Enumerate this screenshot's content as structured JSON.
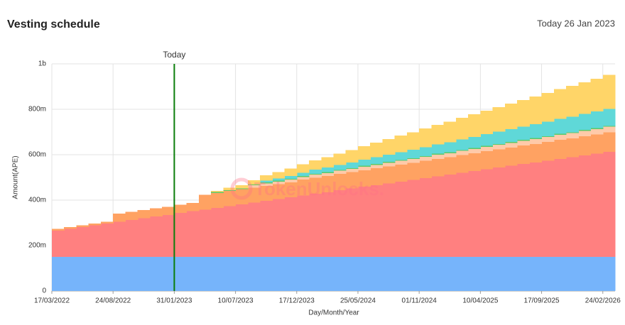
{
  "header": {
    "title": "Vesting schedule",
    "date": "Today 26 Jan 2023"
  },
  "chart_data": {
    "type": "stacked_step_area",
    "watermark": "TokenUnlocks.",
    "xlabel": "Day/Month/Year",
    "ylabel": "Amount(APE)",
    "today_marker": {
      "label": "Today",
      "category": "31/01/2023",
      "color": "#0a7d0a"
    },
    "categories": [
      "17/03/2022",
      null,
      null,
      null,
      null,
      "24/08/2022",
      null,
      null,
      null,
      null,
      "31/01/2023",
      null,
      null,
      null,
      null,
      "10/07/2023",
      null,
      null,
      null,
      null,
      "17/12/2023",
      null,
      null,
      null,
      null,
      "25/05/2024",
      null,
      null,
      null,
      null,
      "01/11/2024",
      null,
      null,
      null,
      null,
      "10/04/2025",
      null,
      null,
      null,
      null,
      "17/09/2025",
      null,
      null,
      null,
      null,
      "24/02/2026"
    ],
    "ylim": [
      0,
      1000000000
    ],
    "yticks": [
      0,
      {
        "value": 200000000,
        "label": "200m"
      },
      {
        "value": 400000000,
        "label": "400m"
      },
      {
        "value": 600000000,
        "label": "600m"
      },
      {
        "value": 800000000,
        "label": "800m"
      },
      {
        "value": 1000000000,
        "label": "1b"
      }
    ],
    "grid": true,
    "series": [
      {
        "color": "#76b4fb",
        "values": [
          150000000,
          150000000,
          150000000,
          150000000,
          150000000,
          150000000,
          150000000,
          150000000,
          150000000,
          150000000,
          150000000,
          150000000,
          150000000,
          150000000,
          150000000,
          150000000,
          150000000,
          150000000,
          150000000,
          150000000,
          150000000,
          150000000,
          150000000,
          150000000,
          150000000,
          150000000,
          150000000,
          150000000,
          150000000,
          150000000,
          150000000,
          150000000,
          150000000,
          150000000,
          150000000,
          150000000,
          150000000,
          150000000,
          150000000,
          150000000,
          150000000,
          150000000,
          150000000,
          150000000,
          150000000,
          150000000
        ]
      },
      {
        "color": "#ff8080",
        "values": [
          116000000,
          124000000,
          131000000,
          139000000,
          147000000,
          155000000,
          162000000,
          170000000,
          178000000,
          185000000,
          193000000,
          201000000,
          208000000,
          216000000,
          224000000,
          232000000,
          239000000,
          247000000,
          255000000,
          262000000,
          270000000,
          278000000,
          285000000,
          293000000,
          301000000,
          309000000,
          316000000,
          324000000,
          332000000,
          339000000,
          347000000,
          355000000,
          362000000,
          370000000,
          378000000,
          386000000,
          393000000,
          401000000,
          409000000,
          416000000,
          424000000,
          432000000,
          439000000,
          447000000,
          455000000,
          463000000
        ]
      },
      {
        "color": "#ffa262",
        "values": [
          8000000,
          8000000,
          8000000,
          8000000,
          8000000,
          36000000,
          36000000,
          36000000,
          36000000,
          36000000,
          36000000,
          36000000,
          66000000,
          66000000,
          66000000,
          66000000,
          66000000,
          66000000,
          66000000,
          66000000,
          70000000,
          71000000,
          71000000,
          72000000,
          72000000,
          73000000,
          74000000,
          74000000,
          75000000,
          75000000,
          76000000,
          77000000,
          77000000,
          78000000,
          78000000,
          79000000,
          80000000,
          80000000,
          81000000,
          81000000,
          82000000,
          83000000,
          83000000,
          84000000,
          84000000,
          85000000
        ]
      },
      {
        "color": "#ffcaa9",
        "values": [
          0,
          0,
          0,
          0,
          0,
          0,
          0,
          0,
          0,
          0,
          0,
          0,
          0,
          0,
          0,
          0,
          10000000,
          11000000,
          11000000,
          12000000,
          12000000,
          13000000,
          13000000,
          14000000,
          14000000,
          15000000,
          15000000,
          16000000,
          16000000,
          17000000,
          17000000,
          18000000,
          18000000,
          19000000,
          19000000,
          20000000,
          20000000,
          21000000,
          21000000,
          22000000,
          22000000,
          23000000,
          23000000,
          24000000,
          24000000,
          25000000
        ]
      },
      {
        "color": "#5cc96a",
        "values": [
          0,
          0,
          0,
          0,
          0,
          0,
          0,
          0,
          0,
          0,
          0,
          0,
          0,
          4000000,
          4000000,
          4000000,
          4000000,
          4000000,
          4000000,
          4000000,
          4000000,
          4000000,
          4000000,
          4000000,
          4000000,
          4000000,
          4000000,
          4000000,
          4000000,
          4000000,
          4000000,
          4000000,
          4000000,
          4000000,
          4000000,
          4000000,
          4000000,
          4000000,
          4000000,
          4000000,
          4000000,
          4000000,
          4000000,
          4000000,
          4000000,
          4000000
        ]
      },
      {
        "color": "#5fd8d8",
        "values": [
          0,
          0,
          0,
          0,
          0,
          0,
          0,
          0,
          0,
          0,
          0,
          0,
          0,
          0,
          0,
          0,
          0,
          8000000,
          10000000,
          13000000,
          15000000,
          18000000,
          20000000,
          22000000,
          25000000,
          27000000,
          30000000,
          32000000,
          34000000,
          37000000,
          39000000,
          42000000,
          44000000,
          46000000,
          49000000,
          51000000,
          54000000,
          56000000,
          58000000,
          61000000,
          63000000,
          66000000,
          68000000,
          70000000,
          73000000,
          75000000
        ]
      },
      {
        "color": "#ffd568",
        "values": [
          0,
          0,
          0,
          0,
          0,
          0,
          0,
          0,
          0,
          0,
          0,
          0,
          0,
          5000000,
          10000000,
          14000000,
          19000000,
          23000000,
          28000000,
          32000000,
          37000000,
          41000000,
          46000000,
          50000000,
          55000000,
          59000000,
          64000000,
          68000000,
          73000000,
          77000000,
          82000000,
          86000000,
          91000000,
          95000000,
          100000000,
          104000000,
          109000000,
          113000000,
          118000000,
          122000000,
          127000000,
          131000000,
          136000000,
          140000000,
          145000000,
          149000000
        ]
      }
    ]
  }
}
